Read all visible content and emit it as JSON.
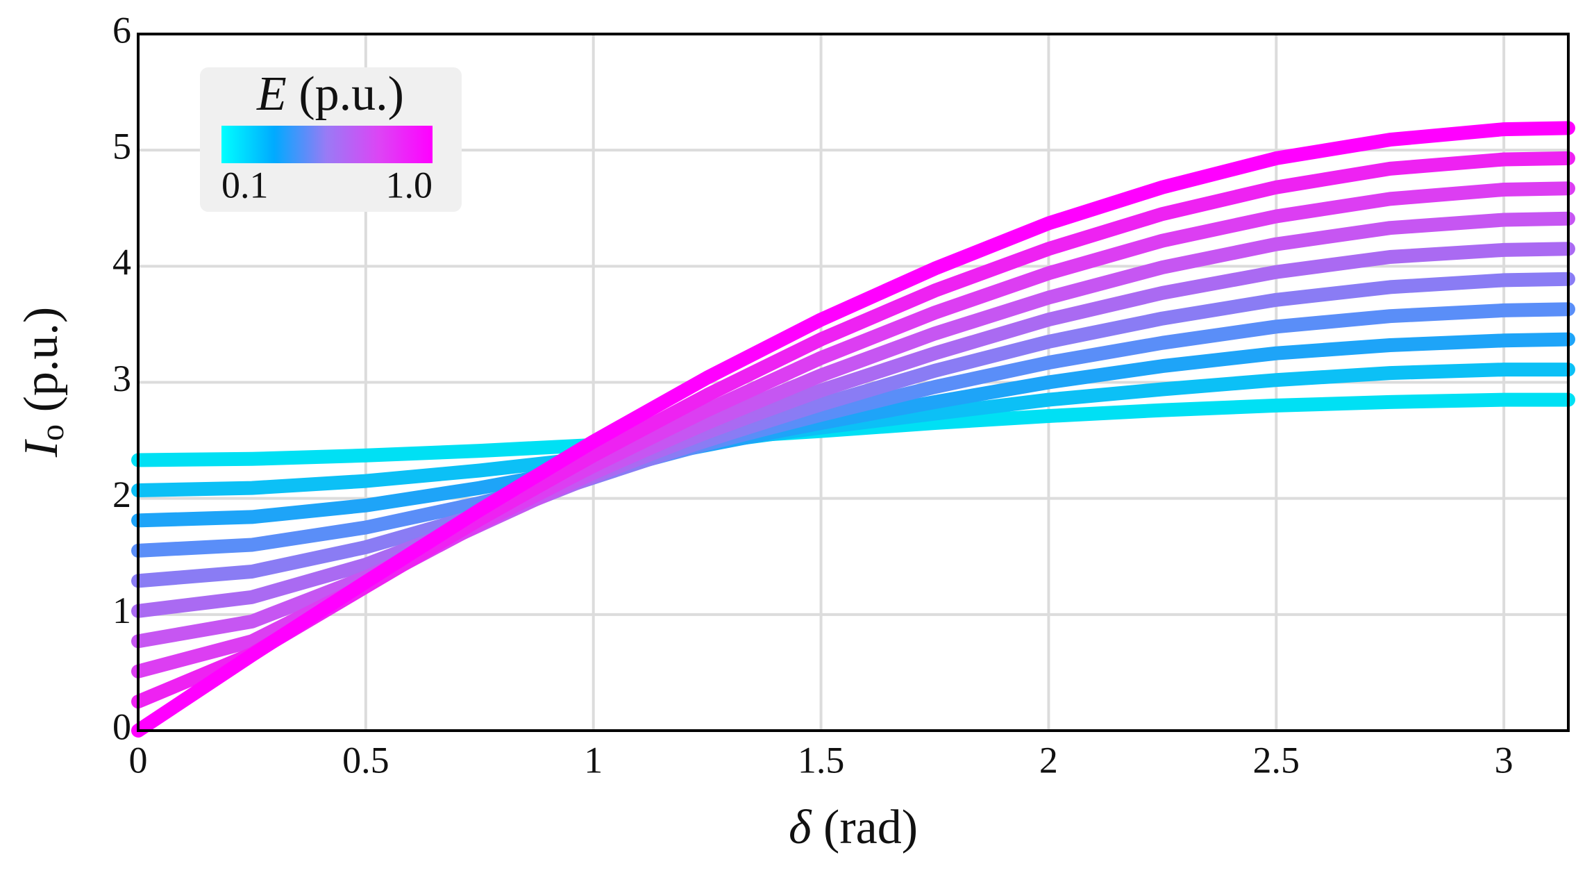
{
  "chart_data": {
    "type": "line",
    "x_label": {
      "symbol": "δ",
      "unit": "(rad)"
    },
    "y_label": {
      "symbol": "I",
      "subscript": "o",
      "unit": "(p.u.)"
    },
    "x": [
      0,
      0.25,
      0.5,
      0.75,
      1,
      1.25,
      1.5,
      1.75,
      2,
      2.25,
      2.5,
      2.75,
      3,
      3.1416
    ],
    "series": [
      {
        "color": "#00e0f4",
        "values": [
          2.33,
          2.34,
          2.37,
          2.41,
          2.46,
          2.52,
          2.58,
          2.65,
          2.71,
          2.76,
          2.8,
          2.83,
          2.85,
          2.85
        ]
      },
      {
        "color": "#0cc0f6",
        "values": [
          2.07,
          2.09,
          2.15,
          2.24,
          2.35,
          2.48,
          2.61,
          2.73,
          2.85,
          2.94,
          3.02,
          3.08,
          3.11,
          3.11
        ]
      },
      {
        "color": "#1ea4f8",
        "values": [
          1.81,
          1.84,
          1.94,
          2.09,
          2.27,
          2.46,
          2.65,
          2.83,
          3.0,
          3.14,
          3.25,
          3.32,
          3.36,
          3.37
        ]
      },
      {
        "color": "#5a8ef8",
        "values": [
          1.55,
          1.6,
          1.75,
          1.96,
          2.21,
          2.47,
          2.72,
          2.96,
          3.17,
          3.34,
          3.48,
          3.57,
          3.62,
          3.63
        ]
      },
      {
        "color": "#8a7cf4",
        "values": [
          1.29,
          1.37,
          1.58,
          1.86,
          2.18,
          2.5,
          2.81,
          3.1,
          3.35,
          3.55,
          3.71,
          3.82,
          3.88,
          3.89
        ]
      },
      {
        "color": "#aa6af2",
        "values": [
          1.03,
          1.15,
          1.43,
          1.8,
          2.19,
          2.57,
          2.93,
          3.25,
          3.54,
          3.77,
          3.95,
          4.08,
          4.14,
          4.15
        ]
      },
      {
        "color": "#c656f2",
        "values": [
          0.77,
          0.94,
          1.32,
          1.77,
          2.22,
          2.65,
          3.06,
          3.42,
          3.73,
          3.99,
          4.19,
          4.33,
          4.4,
          4.41
        ]
      },
      {
        "color": "#dc3ef2",
        "values": [
          0.51,
          0.77,
          1.26,
          1.78,
          2.28,
          2.76,
          3.21,
          3.6,
          3.94,
          4.22,
          4.43,
          4.58,
          4.66,
          4.67
        ]
      },
      {
        "color": "#ee22f2",
        "values": [
          0.25,
          0.66,
          1.24,
          1.82,
          2.37,
          2.89,
          3.37,
          3.79,
          4.15,
          4.45,
          4.68,
          4.84,
          4.92,
          4.93
        ]
      },
      {
        "color": "#ff00ff",
        "values": [
          0,
          0.65,
          1.28,
          1.9,
          2.49,
          3.04,
          3.54,
          3.98,
          4.37,
          4.68,
          4.93,
          5.09,
          5.18,
          5.19
        ]
      }
    ],
    "xlim": [
      0,
      3.1416
    ],
    "xticks": [
      0,
      0.5,
      1,
      1.5,
      2,
      2.5,
      3
    ],
    "ylim": [
      0,
      6
    ],
    "yticks": [
      0,
      1,
      2,
      3,
      4,
      5,
      6
    ],
    "grid": true,
    "colorbar": {
      "title": {
        "symbol": "E",
        "unit": "(p.u.)"
      },
      "range": [
        0.1,
        1
      ],
      "ticks": [
        0.1,
        {
          "value": 1,
          "label": "1.0"
        }
      ],
      "colors": [
        "#00ffff",
        "#00aaff",
        "#9a7af5",
        "#dd44f5",
        "#ff00ff"
      ],
      "legend_corner": "upper left"
    }
  }
}
